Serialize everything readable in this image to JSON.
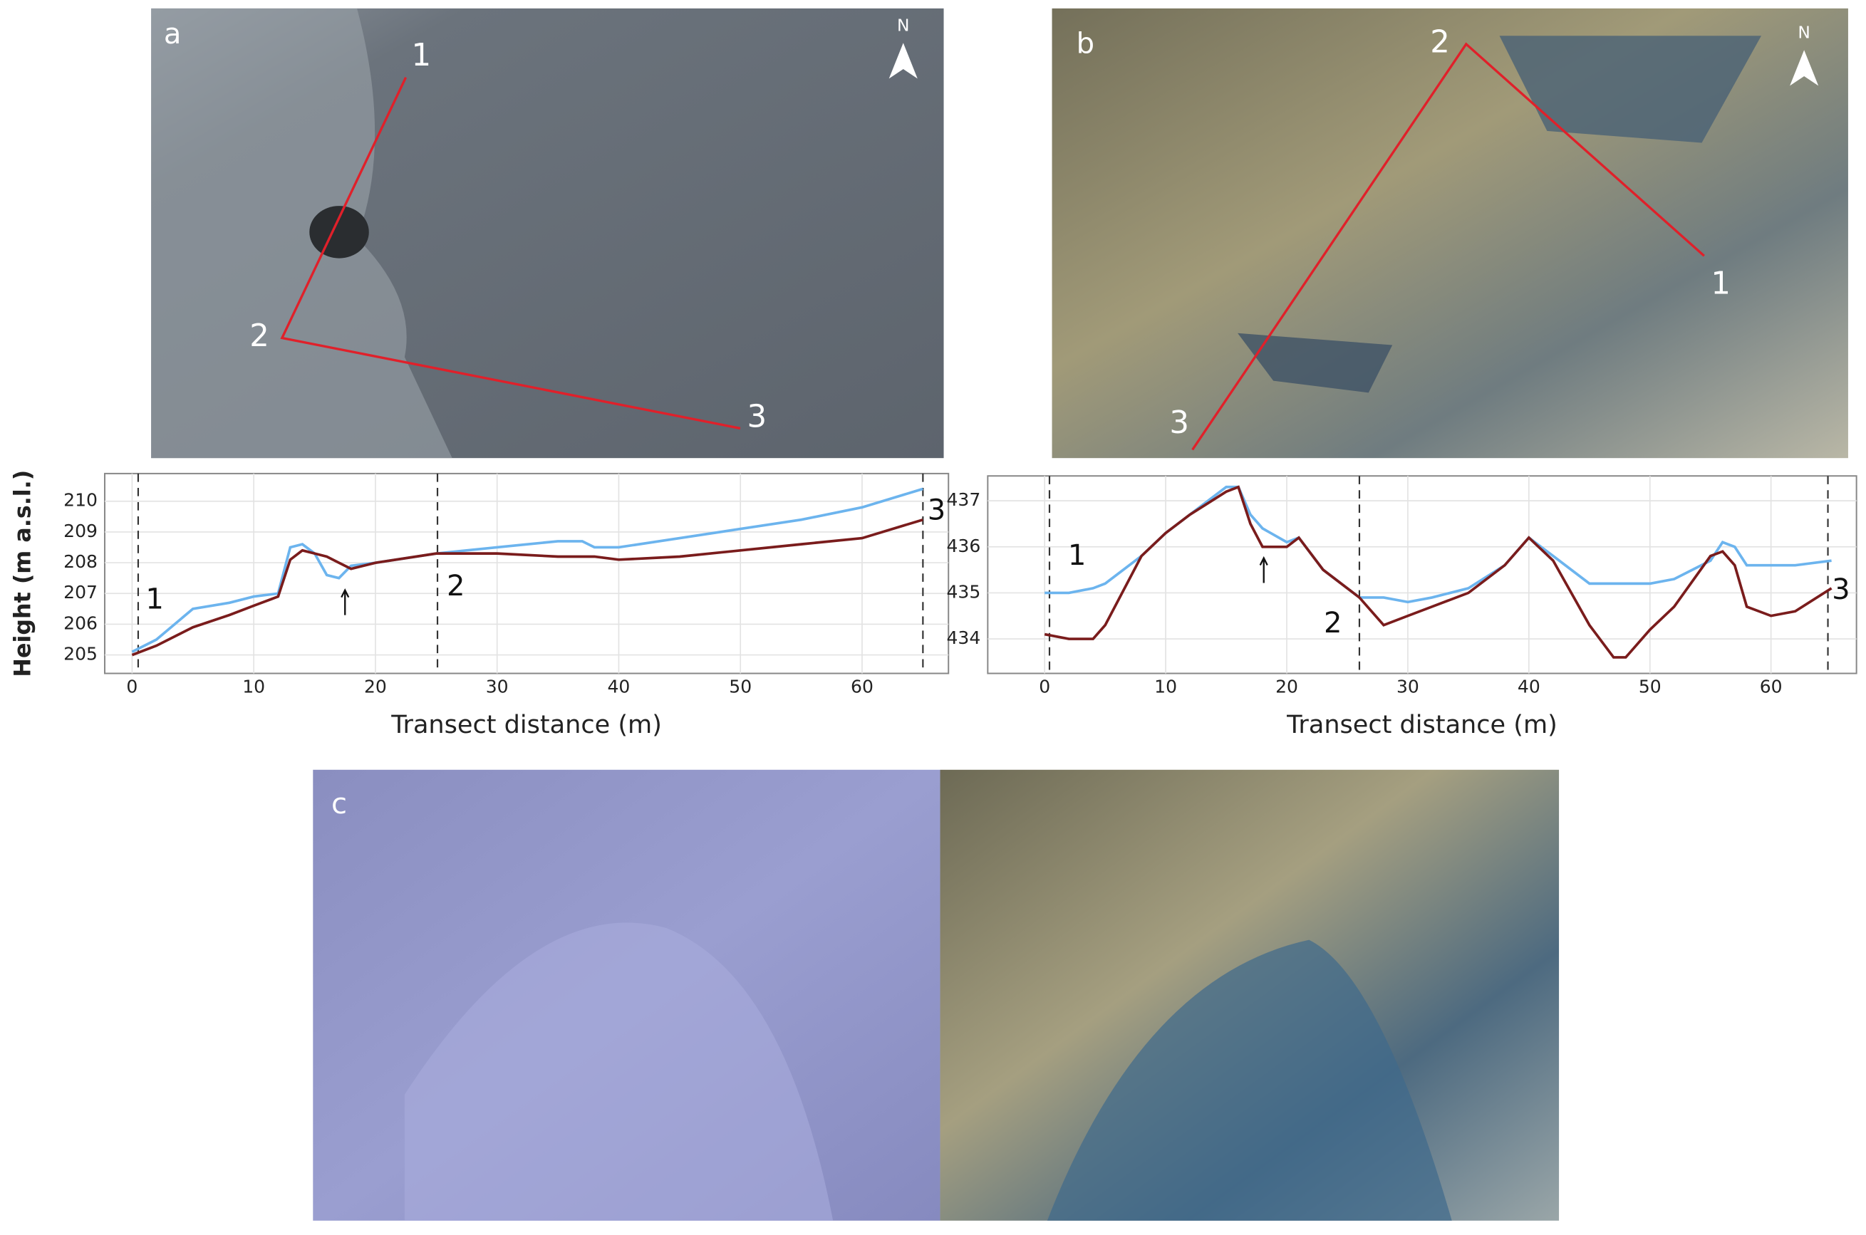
{
  "panels": [
    {
      "label": "a",
      "north": "N",
      "points": [
        "1",
        "2",
        "3"
      ]
    },
    {
      "label": "b",
      "north": "N",
      "points": [
        "1",
        "2",
        "3"
      ]
    },
    {
      "label": "c"
    }
  ],
  "chart_data": [
    {
      "type": "line",
      "xlabel": "Transect distance (m)",
      "ylabel": "Height (m a.s.l.)",
      "x": [
        0,
        2,
        5,
        8,
        10,
        12,
        13,
        14,
        15,
        16,
        17,
        18,
        20,
        25,
        30,
        35,
        37,
        38,
        40,
        45,
        50,
        55,
        60,
        65
      ],
      "series": [
        {
          "color": "#6cb4ee",
          "values": [
            205.1,
            205.5,
            206.5,
            206.7,
            206.9,
            207.0,
            208.5,
            208.6,
            208.3,
            207.6,
            207.5,
            207.9,
            208.0,
            208.3,
            208.5,
            208.7,
            208.7,
            208.5,
            208.5,
            208.8,
            209.1,
            209.4,
            209.8,
            210.4
          ]
        },
        {
          "color": "#7a1c1c",
          "values": [
            205.0,
            205.3,
            205.9,
            206.3,
            206.6,
            206.9,
            208.1,
            208.4,
            208.3,
            208.2,
            208.0,
            207.8,
            208.0,
            208.3,
            208.3,
            208.2,
            208.2,
            208.2,
            208.1,
            208.2,
            208.4,
            208.6,
            208.8,
            209.4
          ]
        }
      ],
      "xlim": [
        -2.25,
        67.1
      ],
      "xticks": [
        0,
        10,
        20,
        30,
        40,
        50,
        60
      ],
      "ylim": [
        204.4,
        210.9
      ],
      "yticks": [
        205,
        206,
        207,
        208,
        209,
        210
      ],
      "grid": true,
      "sections": [
        {
          "x": 0.5,
          "label": "1"
        },
        {
          "x": 25.1,
          "label": "2"
        },
        {
          "x": 65,
          "label": "3"
        }
      ],
      "arrows": [
        17.5
      ]
    },
    {
      "type": "line",
      "xlabel": "Transect distance (m)",
      "x": [
        0,
        2,
        4,
        5,
        8,
        10,
        12,
        15,
        16,
        17,
        18,
        20,
        21,
        23,
        26,
        28,
        30,
        32,
        35,
        38,
        40,
        42,
        45,
        47,
        48,
        50,
        52,
        55,
        56,
        57,
        58,
        60,
        62,
        65
      ],
      "series": [
        {
          "color": "#6cb4ee",
          "values": [
            435.0,
            435.0,
            435.1,
            435.2,
            435.8,
            436.3,
            436.7,
            437.3,
            437.3,
            436.7,
            436.4,
            436.1,
            436.2,
            435.5,
            434.9,
            434.9,
            434.8,
            434.9,
            435.1,
            435.6,
            436.2,
            435.8,
            435.2,
            435.2,
            435.2,
            435.2,
            435.3,
            435.7,
            436.1,
            436.0,
            435.6,
            435.6,
            435.6,
            435.7
          ]
        },
        {
          "color": "#7a1c1c",
          "values": [
            434.1,
            434.0,
            434.0,
            434.3,
            435.8,
            436.3,
            436.7,
            437.2,
            437.3,
            436.5,
            436.0,
            436.0,
            436.2,
            435.5,
            434.9,
            434.3,
            434.5,
            434.7,
            435.0,
            435.6,
            436.2,
            435.7,
            434.3,
            433.6,
            433.6,
            434.2,
            434.7,
            435.8,
            435.9,
            435.6,
            434.7,
            434.5,
            434.6,
            435.1
          ]
        }
      ],
      "xlim": [
        -4.7,
        67.06
      ],
      "xticks": [
        0,
        10,
        20,
        30,
        40,
        50,
        60
      ],
      "ylim": [
        433.25,
        437.54
      ],
      "yticks": [
        434,
        435,
        436,
        437
      ],
      "grid": true,
      "sections": [
        {
          "x": 0.4,
          "label": "1"
        },
        {
          "x": 26,
          "label": "2"
        },
        {
          "x": 64.7,
          "label": "3"
        }
      ],
      "arrows": [
        18.1
      ]
    }
  ]
}
